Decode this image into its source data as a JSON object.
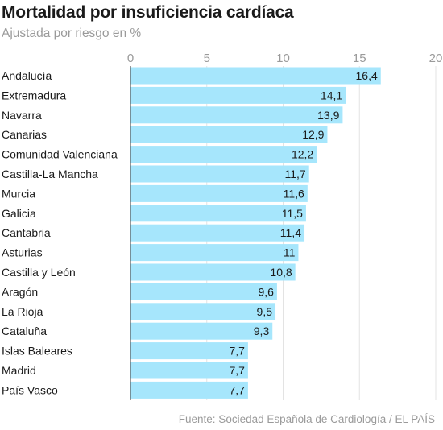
{
  "chart_data": {
    "type": "bar",
    "orientation": "horizontal",
    "title": "Mortalidad por insuficiencia cardíaca",
    "subtitle": "Ajustada por riesgo en %",
    "source": "Fuente: Sociedad Española de Cardiología / EL PAÍS",
    "categories": [
      "Andalucía",
      "Extremadura",
      "Navarra",
      "Canarias",
      "Comunidad Valenciana",
      "Castilla-La Mancha",
      "Murcia",
      "Galicia",
      "Cantabria",
      "Asturias",
      "Castilla y León",
      "Aragón",
      "La Rioja",
      "Cataluña",
      "Islas Baleares",
      "Madrid",
      "País Vasco"
    ],
    "values": [
      16.4,
      14.1,
      13.9,
      12.9,
      12.2,
      11.7,
      11.6,
      11.5,
      11.4,
      11,
      10.8,
      9.6,
      9.5,
      9.3,
      7.7,
      7.7,
      7.7
    ],
    "value_labels": [
      "16,4",
      "14,1",
      "13,9",
      "12,9",
      "12,2",
      "11,7",
      "11,6",
      "11,5",
      "11,4",
      "11",
      "10,8",
      "9,6",
      "9,5",
      "9,3",
      "7,7",
      "7,7",
      "7,7"
    ],
    "xlim": [
      0,
      20
    ],
    "xticks": [
      0,
      5,
      10,
      15,
      20
    ],
    "xtick_labels": [
      "0",
      "5",
      "10",
      "15",
      "20"
    ],
    "grid": true,
    "colors": {
      "bar": "#a6e6fc",
      "axis": "#555555",
      "grid": "#e3e3e3"
    }
  }
}
